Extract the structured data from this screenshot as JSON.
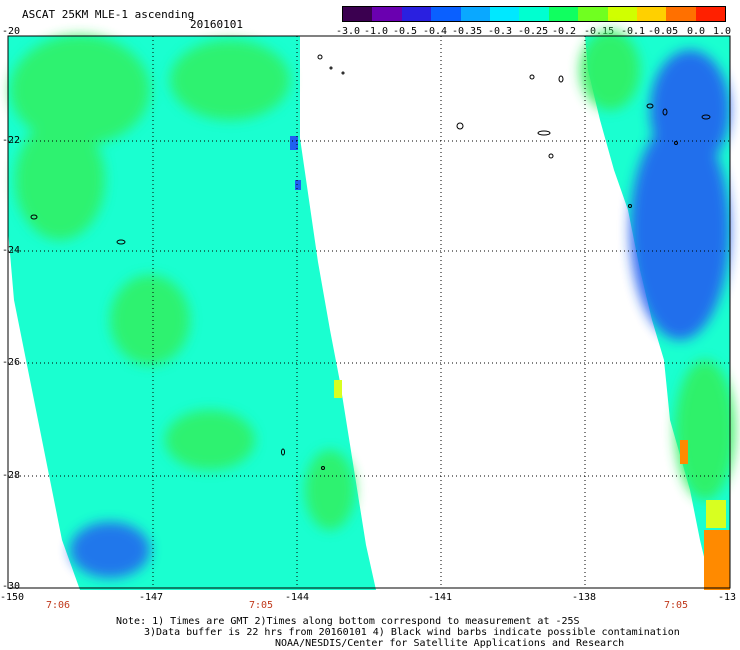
{
  "header": {
    "title": "ASCAT 25KM MLE-1 ascending",
    "date": "20160101"
  },
  "colorbar": {
    "labels": [
      "-3.0",
      "-1.0",
      "-0.5",
      "-0.4",
      "-0.35",
      "-0.3",
      "-0.25",
      "-0.2",
      "-0.15",
      "-0.1",
      "-0.05",
      "0.0",
      "1.0"
    ],
    "colors": [
      "#3b0050",
      "#6a00b0",
      "#2a20e0",
      "#0a60ff",
      "#0aa8ff",
      "#00e8ff",
      "#00ffd0",
      "#10ff60",
      "#70ff20",
      "#d0ff00",
      "#ffd000",
      "#ff7000",
      "#ff2000"
    ]
  },
  "axes": {
    "lat_labels": [
      "-20",
      "-22",
      "-24",
      "-26",
      "-28",
      "-30"
    ],
    "lon_labels": [
      "-150",
      "-147",
      "-144",
      "-141",
      "-138",
      "-13"
    ]
  },
  "times": [
    "7:06",
    "7:05",
    "7:05"
  ],
  "notes": [
    "Note: 1) Times are GMT 2)Times along bottom correspond to measurement at -25S",
    "3)Data buffer is 22 hrs from 20160101 4) Black wind barbs indicate possible contamination",
    "NOAA/NESDIS/Center for Satellite Applications and Research"
  ],
  "map": {
    "swath_colors": {
      "swath_base": "#1affd0",
      "green": "#30f060",
      "blue": "#2060f0",
      "orange": "#ff8a00"
    }
  }
}
